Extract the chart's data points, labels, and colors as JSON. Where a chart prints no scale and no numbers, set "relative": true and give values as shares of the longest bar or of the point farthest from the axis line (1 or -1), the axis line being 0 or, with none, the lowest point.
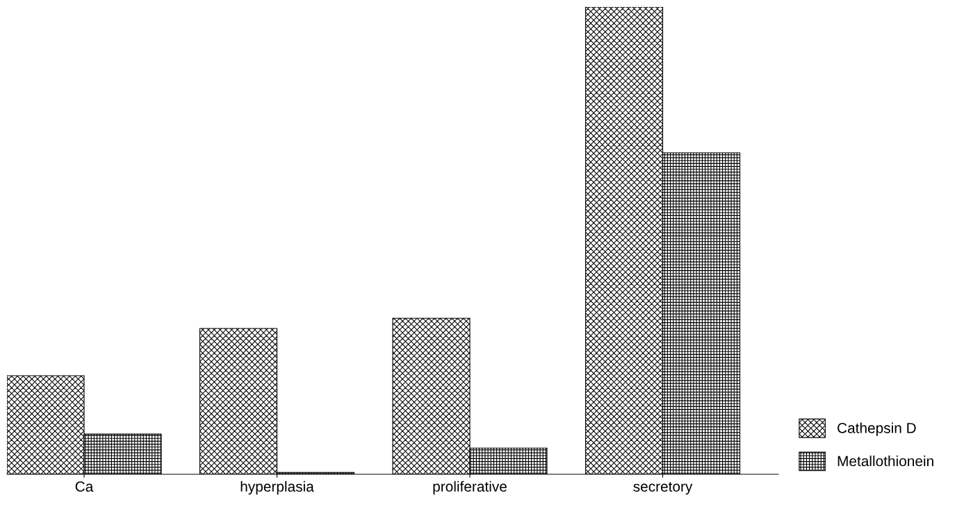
{
  "chart_data": {
    "type": "bar",
    "relative": true,
    "categories": [
      "Ca",
      "hyperplasia",
      "proliferative",
      "secretory"
    ],
    "series": [
      {
        "name": "Cathepsin D",
        "color": "#000000",
        "values": [
          0.211,
          0.312,
          0.334,
          1
        ]
      },
      {
        "name": "Metallothionein",
        "color": "#000000",
        "values": [
          0.086,
          0.004,
          0.056,
          0.688
        ]
      }
    ],
    "legend": "bottom right",
    "grid": false
  }
}
